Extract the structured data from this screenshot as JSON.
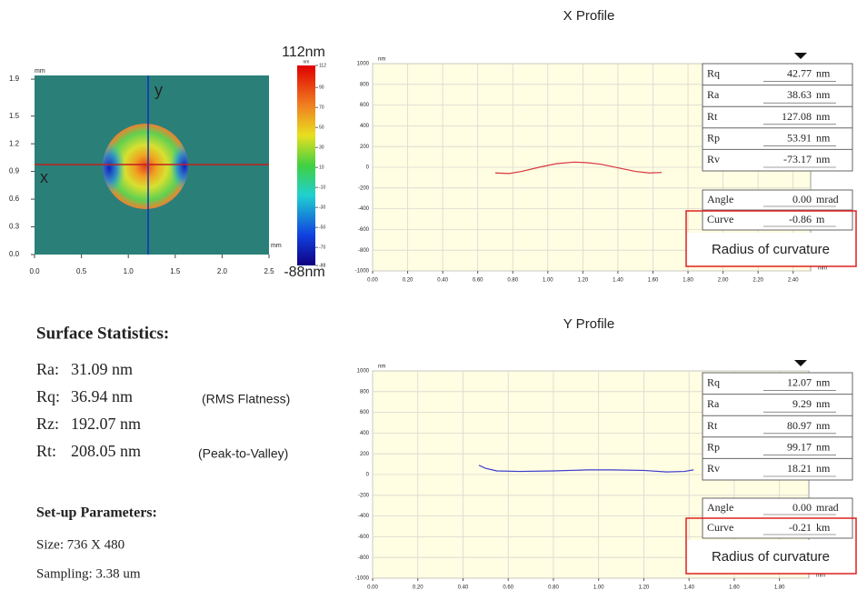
{
  "chart_data": [
    {
      "type": "line",
      "title": "X Profile",
      "xlabel": "mm",
      "ylabel": "nm",
      "grid": true,
      "xlim": [
        0,
        2.5
      ],
      "ylim": [
        -1000,
        1000
      ],
      "xticks": [
        {
          "value": 0,
          "label": "0.00"
        },
        {
          "value": 0.2,
          "label": "0.20"
        },
        {
          "value": 0.4,
          "label": "0.40"
        },
        {
          "value": 0.6,
          "label": "0.60"
        },
        {
          "value": 0.8,
          "label": "0.80"
        },
        {
          "value": 1,
          "label": "1.00"
        },
        {
          "value": 1.2,
          "label": "1.20"
        },
        {
          "value": 1.4,
          "label": "1.40"
        },
        {
          "value": 1.6,
          "label": "1.60"
        },
        {
          "value": 1.8,
          "label": "1.80"
        },
        {
          "value": 2,
          "label": "2.00"
        },
        {
          "value": 2.2,
          "label": "2.20"
        },
        {
          "value": 2.4,
          "label": "2.40"
        }
      ],
      "yticks": [
        1000,
        800,
        600,
        400,
        200,
        0,
        -200,
        -400,
        -600,
        -800,
        -1000
      ],
      "x": [
        0.7,
        0.78,
        0.85,
        0.95,
        1.05,
        1.15,
        1.22,
        1.3,
        1.4,
        1.5,
        1.58,
        1.65
      ],
      "series": [
        {
          "color": "#d9363e",
          "values": [
            -55,
            -60,
            -40,
            0,
            35,
            50,
            45,
            30,
            -5,
            -40,
            -55,
            -50
          ]
        }
      ],
      "stats": [
        [
          "Rq",
          "42.77",
          "nm"
        ],
        [
          "Ra",
          "38.63",
          "nm"
        ],
        [
          "Rt",
          "127.08",
          "nm"
        ],
        [
          "Rp",
          "53.91",
          "nm"
        ],
        [
          "Rv",
          "-73.17",
          "nm"
        ]
      ],
      "fit": [
        [
          "Angle",
          "0.00",
          "mrad"
        ],
        [
          "Curve",
          "-0.86",
          "m"
        ]
      ],
      "annotation": "Radius of curvature"
    },
    {
      "type": "line",
      "title": "Y Profile",
      "xlabel": "mm",
      "ylabel": "nm",
      "grid": true,
      "xlim": [
        0,
        1.93
      ],
      "ylim": [
        -1000,
        1000
      ],
      "xticks": [
        {
          "value": 0,
          "label": "0.00"
        },
        {
          "value": 0.2,
          "label": "0.20"
        },
        {
          "value": 0.4,
          "label": "0.40"
        },
        {
          "value": 0.6,
          "label": "0.60"
        },
        {
          "value": 0.8,
          "label": "0.80"
        },
        {
          "value": 1,
          "label": "1.00"
        },
        {
          "value": 1.2,
          "label": "1.20"
        },
        {
          "value": 1.4,
          "label": "1.40"
        },
        {
          "value": 1.6,
          "label": "1.60"
        },
        {
          "value": 1.8,
          "label": "1.80"
        }
      ],
      "yticks": [
        1000,
        800,
        600,
        400,
        200,
        0,
        -200,
        -400,
        -600,
        -800,
        -1000
      ],
      "x": [
        0.47,
        0.5,
        0.55,
        0.65,
        0.8,
        0.95,
        1.05,
        1.2,
        1.3,
        1.38,
        1.42
      ],
      "series": [
        {
          "color": "#3b3bd0",
          "values": [
            90,
            60,
            35,
            30,
            35,
            45,
            45,
            40,
            25,
            30,
            45
          ]
        }
      ],
      "stats": [
        [
          "Rq",
          "12.07",
          "nm"
        ],
        [
          "Ra",
          "9.29",
          "nm"
        ],
        [
          "Rt",
          "80.97",
          "nm"
        ],
        [
          "Rp",
          "99.17",
          "nm"
        ],
        [
          "Rv",
          "18.21",
          "nm"
        ]
      ],
      "fit": [
        [
          "Angle",
          "0.00",
          "mrad"
        ],
        [
          "Curve",
          "-0.21",
          "km"
        ]
      ],
      "annotation": "Radius of curvature"
    }
  ],
  "surface_map": {
    "xlabel": "mm",
    "ylabel": "mm",
    "x_marker": "x",
    "y_marker": "y",
    "xlim": [
      0,
      2.5
    ],
    "ylim": [
      0,
      1.94
    ],
    "xticks": [
      {
        "value": 0,
        "label": "0.0"
      },
      {
        "value": 0.5,
        "label": "0.5"
      },
      {
        "value": 1,
        "label": "1.0"
      },
      {
        "value": 1.5,
        "label": "1.5"
      },
      {
        "value": 2,
        "label": "2.0"
      },
      {
        "value": 2.5,
        "label": "2.5"
      }
    ],
    "yticks": [
      {
        "value": 0,
        "label": "0.0"
      },
      {
        "value": 0.3,
        "label": "0.3"
      },
      {
        "value": 0.6,
        "label": "0.6"
      },
      {
        "value": 0.9,
        "label": "0.9"
      },
      {
        "value": 1.2,
        "label": "1.2"
      },
      {
        "value": 1.5,
        "label": "1.5"
      },
      {
        "value": 1.9,
        "label": "1.9"
      }
    ],
    "colorbar": {
      "unit": "nm",
      "max_label": "112nm",
      "min_label": "-88nm",
      "lim": [
        -88,
        112
      ],
      "ticks": [
        112,
        90,
        70,
        50,
        30,
        10,
        -10,
        -30,
        -50,
        -70,
        -88
      ]
    }
  },
  "surface_statistics": {
    "title": "Surface Statistics:",
    "items": [
      {
        "label": "Ra:",
        "value": "31.09 nm"
      },
      {
        "label": "Rq:",
        "value": "36.94 nm",
        "note": "(RMS Flatness)"
      },
      {
        "label": "Rz:",
        "value": "192.07 nm"
      },
      {
        "label": "Rt:",
        "value": "208.05 nm",
        "note": "(Peak-to-Valley)"
      }
    ]
  },
  "setup_parameters": {
    "title": "Set-up Parameters:",
    "items": [
      "Size: 736 X 480",
      "Sampling: 3.38 um"
    ]
  }
}
